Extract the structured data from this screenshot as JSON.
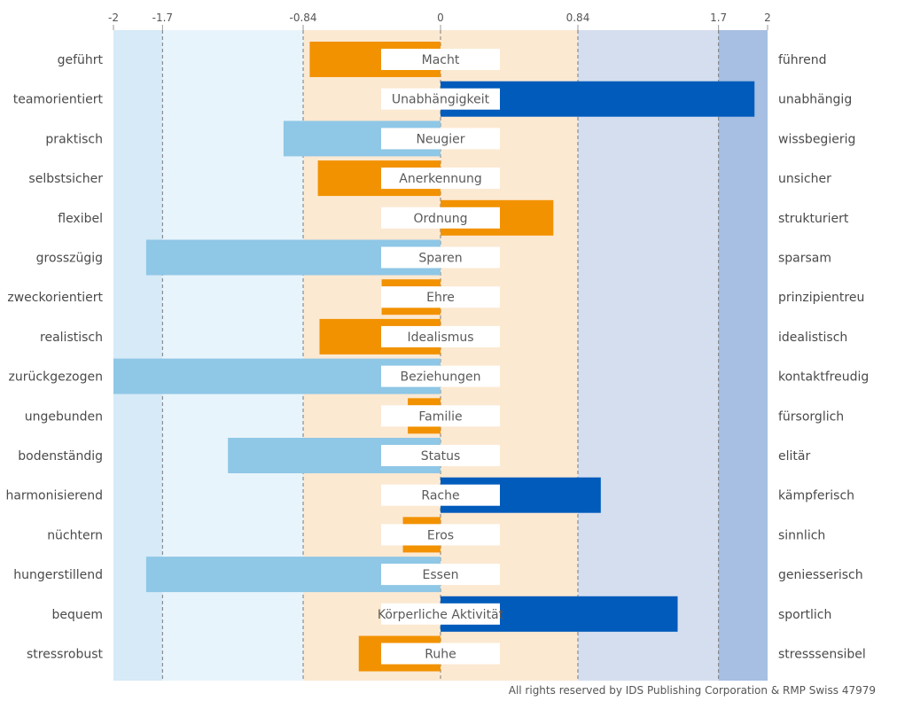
{
  "chart_data": {
    "type": "bar",
    "orientation": "horizontal",
    "xlim": [
      -2,
      2
    ],
    "ticks": [
      {
        "value": -2,
        "label": "-2"
      },
      {
        "value": -1.7,
        "label": "-1.7"
      },
      {
        "value": -0.84,
        "label": "-0.84"
      },
      {
        "value": 0,
        "label": "0"
      },
      {
        "value": 0.84,
        "label": "0.84"
      },
      {
        "value": 1.7,
        "label": "1.7"
      },
      {
        "value": 2,
        "label": "2"
      }
    ],
    "zones": [
      {
        "from": -2,
        "to": -1.7,
        "color": "#d6eaf7"
      },
      {
        "from": -1.7,
        "to": -0.84,
        "color": "#e8f4fb"
      },
      {
        "from": -0.84,
        "to": 0.84,
        "color": "#fce9d2"
      },
      {
        "from": 0.84,
        "to": 1.7,
        "color": "#d5deef"
      },
      {
        "from": 1.7,
        "to": 2,
        "color": "#a6bfe2"
      }
    ],
    "colors": {
      "strong_negative": "#8fc7e6",
      "moderate": "#f29200",
      "strong_positive": "#005bbb"
    },
    "rows": [
      {
        "motive": "Macht",
        "left": "geführt",
        "right": "führend",
        "value": -0.8
      },
      {
        "motive": "Unabhängigkeit",
        "left": "teamorientiert",
        "right": "unabhängig",
        "value": 1.92
      },
      {
        "motive": "Neugier",
        "left": "praktisch",
        "right": "wissbegierig",
        "value": -0.96
      },
      {
        "motive": "Anerkennung",
        "left": "selbstsicher",
        "right": "unsicher",
        "value": -0.75
      },
      {
        "motive": "Ordnung",
        "left": "flexibel",
        "right": "strukturiert",
        "value": 0.69
      },
      {
        "motive": "Sparen",
        "left": "grosszügig",
        "right": "sparsam",
        "value": -1.8
      },
      {
        "motive": "Ehre",
        "left": "zweckorientiert",
        "right": "prinzipientreu",
        "value": -0.36
      },
      {
        "motive": "Idealismus",
        "left": "realistisch",
        "right": "idealistisch",
        "value": -0.74
      },
      {
        "motive": "Beziehungen",
        "left": "zurückgezogen",
        "right": "kontaktfreudig",
        "value": -2.0
      },
      {
        "motive": "Familie",
        "left": "ungebunden",
        "right": "fürsorglich",
        "value": -0.2
      },
      {
        "motive": "Status",
        "left": "bodenständig",
        "right": "elitär",
        "value": -1.3
      },
      {
        "motive": "Rache",
        "left": "harmonisierend",
        "right": "kämpferisch",
        "value": 0.98
      },
      {
        "motive": "Eros",
        "left": "nüchtern",
        "right": "sinnlich",
        "value": -0.23
      },
      {
        "motive": "Essen",
        "left": "hungerstillend",
        "right": "geniesserisch",
        "value": -1.8
      },
      {
        "motive": "Körperliche Aktivität",
        "left": "bequem",
        "right": "sportlich",
        "value": 1.45
      },
      {
        "motive": "Ruhe",
        "left": "stressrobust",
        "right": "stresssensibel",
        "value": -0.5
      }
    ]
  },
  "footer": {
    "copyright": "All rights reserved by IDS Publishing Corporation & RMP Swiss 47979"
  }
}
